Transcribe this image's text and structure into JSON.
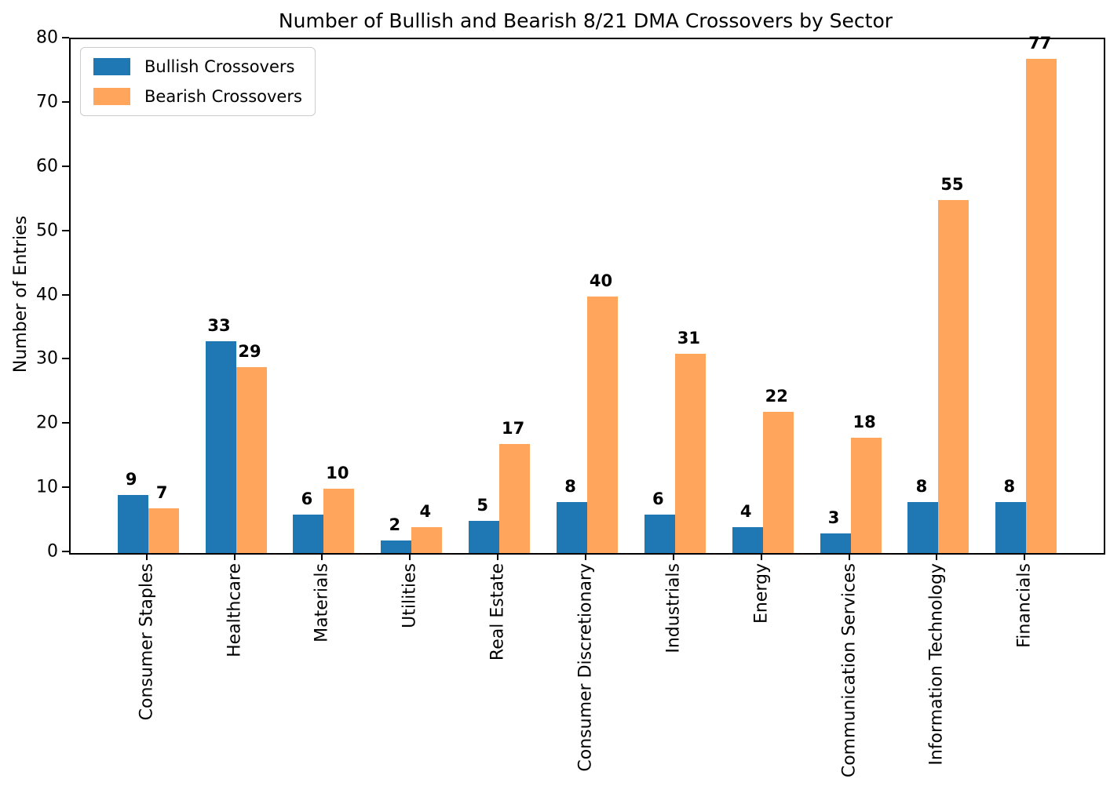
{
  "chart_data": {
    "type": "bar",
    "title": "Number of Bullish and Bearish 8/21 DMA Crossovers by Sector",
    "xlabel": "",
    "ylabel": "Number of Entries",
    "categories": [
      "Consumer Staples",
      "Healthcare",
      "Materials",
      "Utilities",
      "Real Estate",
      "Consumer Discretionary",
      "Industrials",
      "Energy",
      "Communication Services",
      "Information Technology",
      "Financials"
    ],
    "series": [
      {
        "name": "Bullish Crossovers",
        "color": "#1f77b4",
        "values": [
          9,
          33,
          6,
          2,
          5,
          8,
          6,
          4,
          3,
          8,
          8
        ]
      },
      {
        "name": "Bearish Crossovers",
        "color": "#ffa65c",
        "values": [
          7,
          29,
          10,
          4,
          17,
          40,
          31,
          22,
          18,
          55,
          77
        ]
      }
    ],
    "ylim": [
      0,
      80
    ],
    "yticks": [
      0,
      10,
      20,
      30,
      40,
      50,
      60,
      70,
      80
    ],
    "grid": false,
    "bar_value_labels": true,
    "legend_position": "upper-left",
    "x_tick_rotation": 90
  }
}
